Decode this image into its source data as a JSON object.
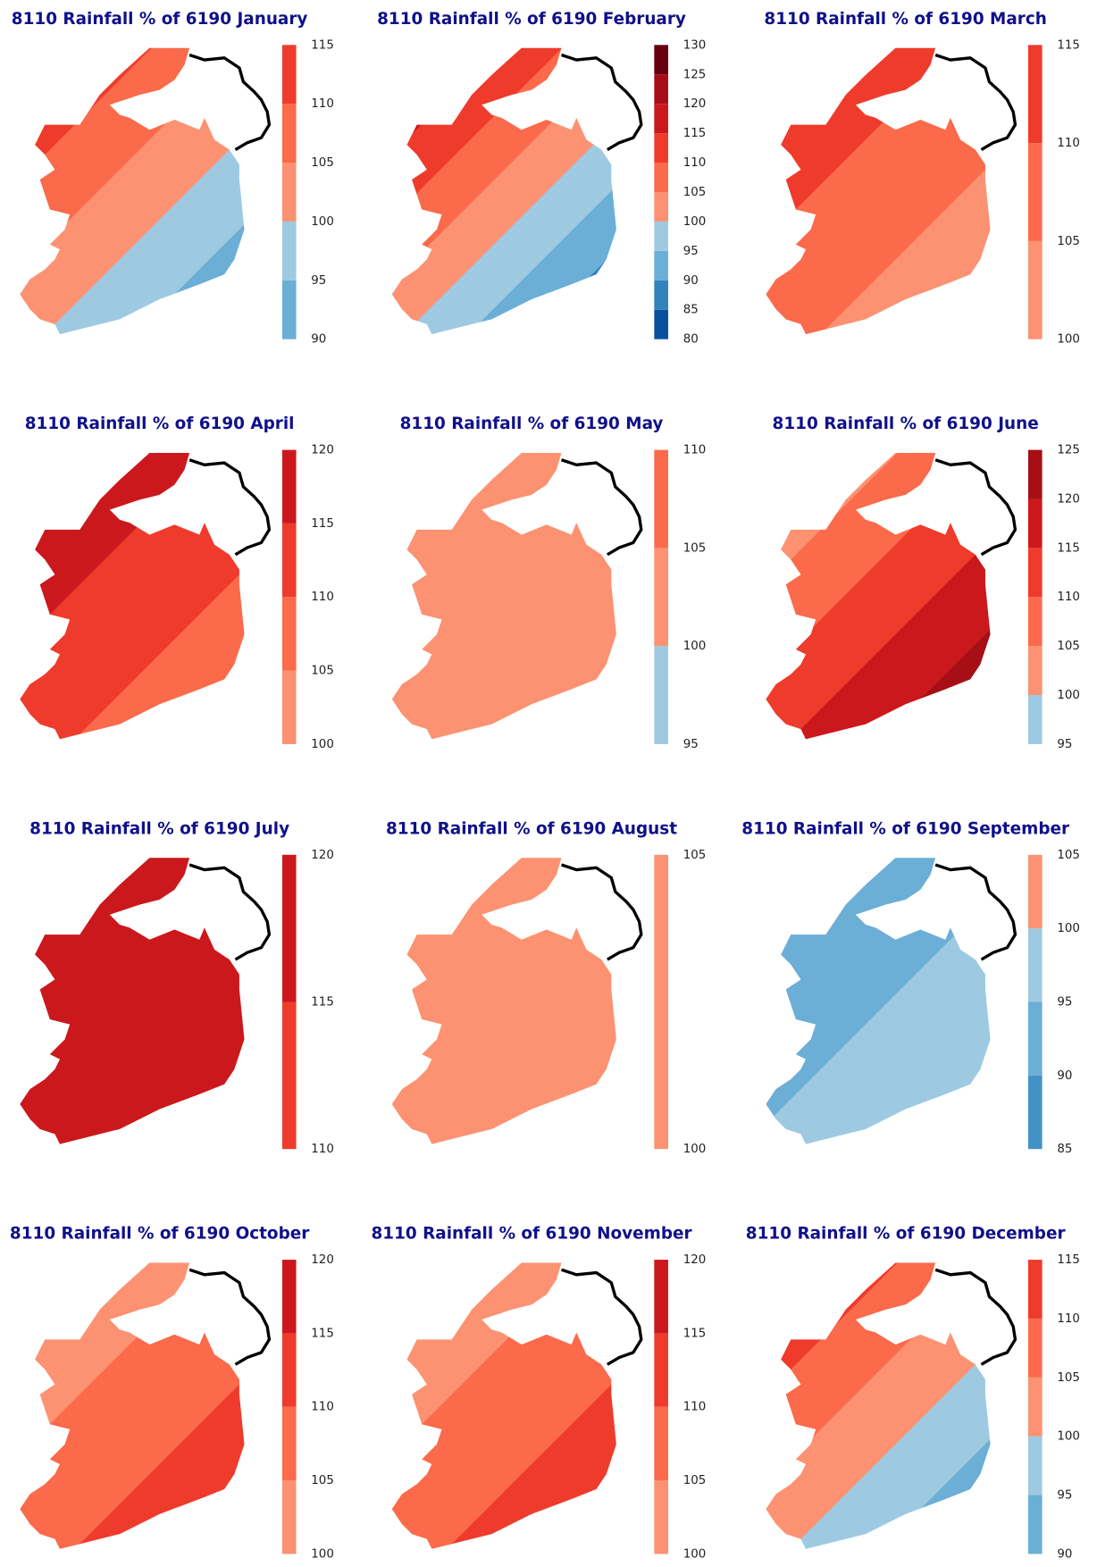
{
  "panels": [
    {
      "title": "8110 Rainfall % of 6190 January",
      "ticks": [
        90,
        95,
        100,
        105,
        110,
        115
      ],
      "colors": [
        "#6baed6",
        "#9ecae1",
        "#fc9272",
        "#fb6a4a",
        "#ef3b2c"
      ]
    },
    {
      "title": "8110 Rainfall % of 6190 February",
      "ticks": [
        80,
        85,
        90,
        95,
        100,
        105,
        110,
        115,
        120,
        125,
        130
      ],
      "colors": [
        "#08519c",
        "#3182bd",
        "#6baed6",
        "#9ecae1",
        "#fc9272",
        "#fb6a4a",
        "#ef3b2c",
        "#cb181d",
        "#a50f15",
        "#67000d"
      ]
    },
    {
      "title": "8110 Rainfall % of 6190 March",
      "ticks": [
        100,
        105,
        110,
        115
      ],
      "colors": [
        "#fc9272",
        "#fb6a4a",
        "#ef3b2c"
      ]
    },
    {
      "title": "8110 Rainfall % of 6190 April",
      "ticks": [
        100,
        105,
        110,
        115,
        120
      ],
      "colors": [
        "#fc9272",
        "#fb6a4a",
        "#ef3b2c",
        "#cb181d"
      ]
    },
    {
      "title": "8110 Rainfall % of 6190 May",
      "ticks": [
        95,
        100,
        105,
        110
      ],
      "colors": [
        "#9ecae1",
        "#fc9272",
        "#fb6a4a"
      ]
    },
    {
      "title": "8110 Rainfall % of 6190 June",
      "ticks": [
        95,
        100,
        105,
        110,
        115,
        120,
        125
      ],
      "colors": [
        "#9ecae1",
        "#fc9272",
        "#fb6a4a",
        "#ef3b2c",
        "#cb181d",
        "#a50f15"
      ]
    },
    {
      "title": "8110 Rainfall % of 6190 July",
      "ticks": [
        110,
        115,
        120
      ],
      "colors": [
        "#ef3b2c",
        "#cb181d"
      ]
    },
    {
      "title": "8110 Rainfall % of 6190 August",
      "ticks": [
        100,
        105
      ],
      "colors": [
        "#fc9272"
      ]
    },
    {
      "title": "8110 Rainfall % of 6190 September",
      "ticks": [
        85,
        90,
        95,
        100,
        105
      ],
      "colors": [
        "#4292c6",
        "#6baed6",
        "#9ecae1",
        "#fc9272"
      ]
    },
    {
      "title": "8110 Rainfall % of 6190 October",
      "ticks": [
        100,
        105,
        110,
        115,
        120
      ],
      "colors": [
        "#fc9272",
        "#fb6a4a",
        "#ef3b2c",
        "#cb181d"
      ]
    },
    {
      "title": "8110 Rainfall % of 6190 November",
      "ticks": [
        100,
        105,
        110,
        115,
        120
      ],
      "colors": [
        "#fc9272",
        "#fb6a4a",
        "#ef3b2c",
        "#cb181d"
      ]
    },
    {
      "title": "8110 Rainfall % of 6190 December",
      "ticks": [
        90,
        95,
        100,
        105,
        110,
        115
      ],
      "colors": [
        "#6baed6",
        "#9ecae1",
        "#fc9272",
        "#fb6a4a",
        "#ef3b2c"
      ]
    }
  ]
}
